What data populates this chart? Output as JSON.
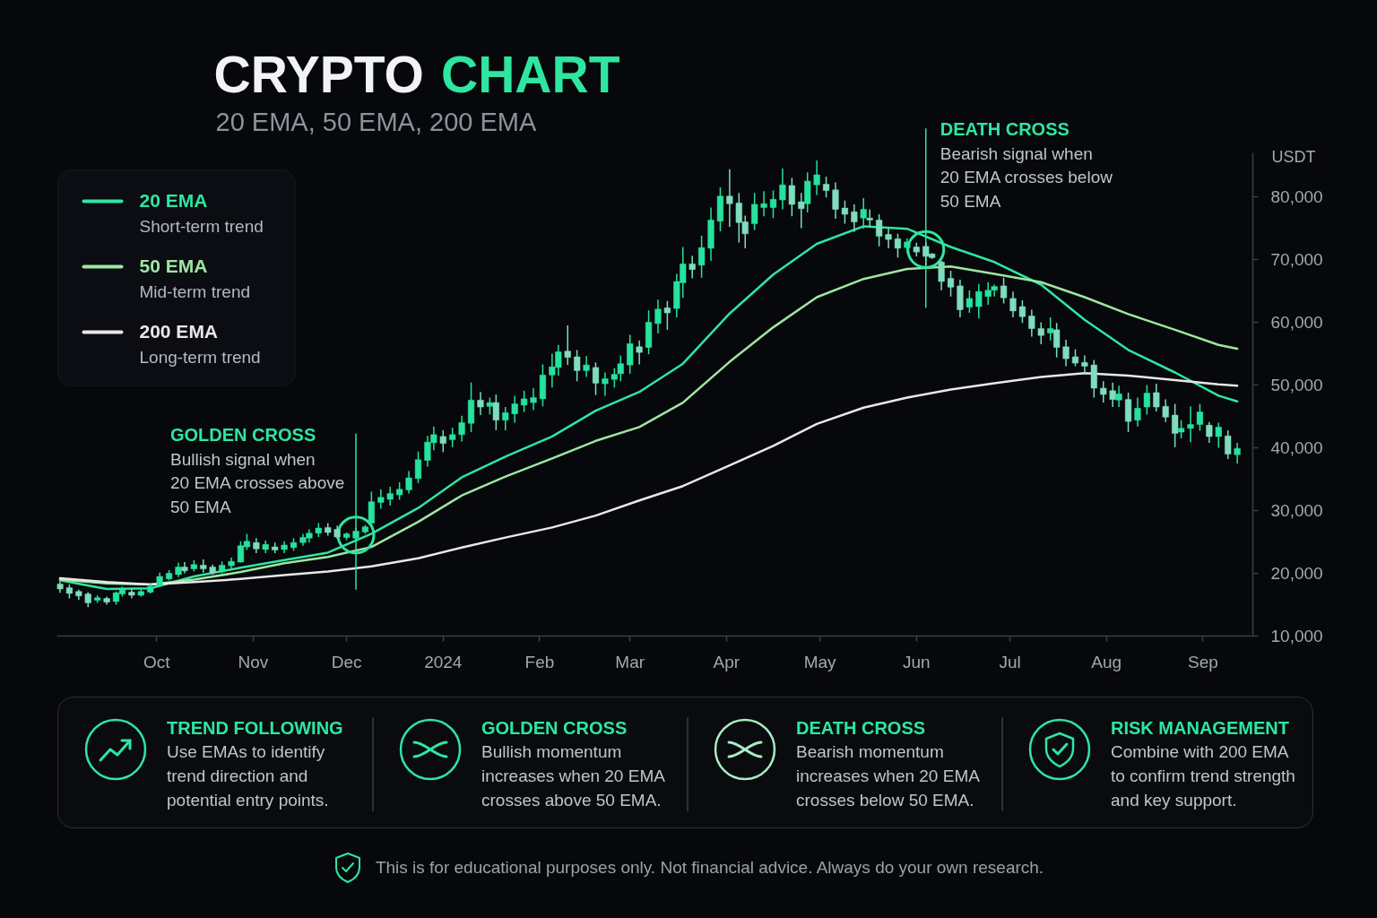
{
  "chart_data": {
    "type": "candlestick",
    "title": "CRYPTO CHART",
    "subtitle": "20 EMA, 50 EMA, 200 EMA",
    "ylabel": "USDT",
    "x": [
      "2023-08-31",
      "2023-09-03",
      "2023-09-06",
      "2023-09-09",
      "2023-09-12",
      "2023-09-15",
      "2023-09-18",
      "2023-09-20",
      "2023-09-23",
      "2023-09-26",
      "2023-09-29",
      "2023-10-02",
      "2023-10-05",
      "2023-10-08",
      "2023-10-10",
      "2023-10-13",
      "2023-10-16",
      "2023-10-19",
      "2023-10-22",
      "2023-10-25",
      "2023-10-28",
      "2023-10-30",
      "2023-11-02",
      "2023-11-05",
      "2023-11-08",
      "2023-11-11",
      "2023-11-14",
      "2023-11-17",
      "2023-11-19",
      "2023-11-22",
      "2023-11-25",
      "2023-11-28",
      "2023-12-01",
      "2023-12-04",
      "2023-12-07",
      "2023-12-09",
      "2023-12-12",
      "2023-12-15",
      "2023-12-18",
      "2023-12-21",
      "2023-12-24",
      "2023-12-27",
      "2023-12-29",
      "2024-01-01",
      "2024-01-04",
      "2024-01-07",
      "2024-01-10",
      "2024-01-13",
      "2024-01-16",
      "2024-01-18",
      "2024-01-21",
      "2024-01-24",
      "2024-01-27",
      "2024-01-30",
      "2024-02-02",
      "2024-02-05",
      "2024-02-07",
      "2024-02-10",
      "2024-02-13",
      "2024-02-16",
      "2024-02-19",
      "2024-02-22",
      "2024-02-25",
      "2024-02-27",
      "2024-03-01",
      "2024-03-04",
      "2024-03-07",
      "2024-03-10",
      "2024-03-13",
      "2024-03-16",
      "2024-03-18",
      "2024-03-21",
      "2024-03-24",
      "2024-03-27",
      "2024-03-30",
      "2024-04-02",
      "2024-04-05",
      "2024-04-07",
      "2024-04-10",
      "2024-04-13",
      "2024-04-16",
      "2024-04-19",
      "2024-04-22",
      "2024-04-25",
      "2024-04-27",
      "2024-04-30",
      "2024-05-03",
      "2024-05-06",
      "2024-05-09",
      "2024-05-12",
      "2024-05-15",
      "2024-05-17",
      "2024-05-20",
      "2024-05-23",
      "2024-05-26",
      "2024-05-29",
      "2024-06-01",
      "2024-06-04",
      "2024-06-06",
      "2024-06-09",
      "2024-06-12",
      "2024-06-15",
      "2024-06-18",
      "2024-06-21",
      "2024-06-24",
      "2024-06-26",
      "2024-06-29",
      "2024-07-02",
      "2024-07-05",
      "2024-07-08",
      "2024-07-11",
      "2024-07-14",
      "2024-07-16",
      "2024-07-19",
      "2024-07-22",
      "2024-07-25",
      "2024-07-28",
      "2024-07-31",
      "2024-08-03",
      "2024-08-05",
      "2024-08-08",
      "2024-08-11",
      "2024-08-14",
      "2024-08-17",
      "2024-08-20",
      "2024-08-23",
      "2024-08-25",
      "2024-08-28",
      "2024-08-31",
      "2024-09-03",
      "2024-09-06",
      "2024-09-09",
      "2024-09-12"
    ],
    "ohlc": [
      [
        18300,
        18700,
        16900,
        17500
      ],
      [
        17700,
        18200,
        16000,
        16800
      ],
      [
        17100,
        17400,
        15800,
        16400
      ],
      [
        16700,
        17000,
        14600,
        15300
      ],
      [
        15700,
        16500,
        15300,
        16100
      ],
      [
        16000,
        16300,
        15000,
        15400
      ],
      [
        15500,
        17100,
        15000,
        16900
      ],
      [
        16700,
        17900,
        16300,
        17500
      ],
      [
        17000,
        17500,
        16000,
        16500
      ],
      [
        16500,
        17500,
        16300,
        17100
      ],
      [
        17000,
        18400,
        16800,
        17900
      ],
      [
        18000,
        20100,
        17900,
        19500
      ],
      [
        19100,
        20500,
        18900,
        20000
      ],
      [
        19800,
        21700,
        19400,
        21000
      ],
      [
        21000,
        21800,
        20000,
        20400
      ],
      [
        20700,
        22100,
        20300,
        21400
      ],
      [
        21300,
        22200,
        20100,
        20700
      ],
      [
        21000,
        21400,
        19800,
        20100
      ],
      [
        20200,
        21900,
        20000,
        21300
      ],
      [
        21200,
        22500,
        20600,
        21900
      ],
      [
        21800,
        25100,
        21700,
        24400
      ],
      [
        24200,
        26300,
        23700,
        25100
      ],
      [
        24900,
        25600,
        23200,
        23900
      ],
      [
        23800,
        25200,
        23200,
        24600
      ],
      [
        24200,
        24900,
        23200,
        23700
      ],
      [
        23800,
        25100,
        23200,
        24500
      ],
      [
        24100,
        25600,
        23600,
        24900
      ],
      [
        24900,
        26300,
        24400,
        25700
      ],
      [
        25600,
        27000,
        24900,
        26400
      ],
      [
        26400,
        28000,
        25800,
        27200
      ],
      [
        27300,
        28000,
        26000,
        26500
      ],
      [
        27000,
        27600,
        25500,
        25800
      ],
      [
        25700,
        26500,
        25300,
        26300
      ],
      [
        25600,
        27200,
        25100,
        26700
      ],
      [
        26600,
        27700,
        26300,
        27400
      ],
      [
        28000,
        33000,
        27900,
        31400
      ],
      [
        31300,
        33400,
        30300,
        32100
      ],
      [
        31800,
        33800,
        30800,
        32700
      ],
      [
        32500,
        34500,
        31700,
        33400
      ],
      [
        33300,
        36300,
        32700,
        35200
      ],
      [
        35100,
        39400,
        34400,
        38100
      ],
      [
        38000,
        41900,
        37000,
        40900
      ],
      [
        40800,
        43400,
        39600,
        42100
      ],
      [
        41800,
        42800,
        39300,
        40700
      ],
      [
        41300,
        43200,
        40100,
        42100
      ],
      [
        42100,
        45100,
        41000,
        44000
      ],
      [
        43900,
        50400,
        42500,
        47600
      ],
      [
        47600,
        48900,
        45200,
        46500
      ],
      [
        46600,
        48000,
        45300,
        47200
      ],
      [
        47200,
        48500,
        42800,
        44400
      ],
      [
        44400,
        46500,
        42800,
        45600
      ],
      [
        45400,
        48300,
        44000,
        47000
      ],
      [
        46800,
        49100,
        45700,
        47800
      ],
      [
        47200,
        49500,
        46000,
        48000
      ],
      [
        47800,
        53300,
        46600,
        51600
      ],
      [
        51600,
        55000,
        49600,
        52900
      ],
      [
        52800,
        56400,
        51500,
        55300
      ],
      [
        55400,
        59500,
        53200,
        54400
      ],
      [
        54500,
        55600,
        50600,
        52300
      ],
      [
        52300,
        54600,
        51300,
        53200
      ],
      [
        52800,
        53600,
        48400,
        50300
      ],
      [
        50200,
        52000,
        48300,
        51000
      ],
      [
        50900,
        52700,
        49600,
        51700
      ],
      [
        51800,
        54700,
        50600,
        53400
      ],
      [
        53200,
        58000,
        51800,
        56600
      ],
      [
        56100,
        57100,
        53300,
        55200
      ],
      [
        56000,
        61900,
        54900,
        60000
      ],
      [
        59800,
        63600,
        58200,
        62100
      ],
      [
        62300,
        63400,
        58800,
        61500
      ],
      [
        62200,
        67700,
        60800,
        66500
      ],
      [
        66300,
        72000,
        63900,
        69300
      ],
      [
        69300,
        70600,
        67000,
        68400
      ],
      [
        69100,
        73800,
        67100,
        71900
      ],
      [
        71800,
        78300,
        69800,
        76300
      ],
      [
        76100,
        81500,
        74500,
        80100
      ],
      [
        80100,
        84400,
        75200,
        78900
      ],
      [
        79000,
        80600,
        72700,
        75900
      ],
      [
        76000,
        77000,
        71800,
        74100
      ],
      [
        75700,
        80600,
        74700,
        78800
      ],
      [
        78300,
        80900,
        76900,
        78900
      ],
      [
        78300,
        81000,
        76600,
        79600
      ],
      [
        79500,
        84500,
        78000,
        81900
      ],
      [
        81800,
        83000,
        76900,
        78800
      ],
      [
        79200,
        80600,
        75000,
        78100
      ],
      [
        78900,
        83900,
        77500,
        82500
      ],
      [
        81900,
        85800,
        80300,
        83500
      ],
      [
        82000,
        83200,
        79900,
        81000
      ],
      [
        81100,
        82300,
        76500,
        78000
      ],
      [
        78200,
        79400,
        75700,
        77200
      ],
      [
        77600,
        78800,
        74400,
        76000
      ],
      [
        76600,
        79800,
        74900,
        78000
      ],
      [
        76600,
        78000,
        75300,
        76300
      ],
      [
        76300,
        77200,
        72100,
        73700
      ],
      [
        74000,
        75100,
        71800,
        73200
      ],
      [
        73300,
        74100,
        70300,
        71800
      ],
      [
        71900,
        73400,
        71000,
        72800
      ],
      [
        72000,
        72700,
        70500,
        71200
      ],
      [
        72100,
        72800,
        69100,
        70500
      ],
      [
        70900,
        71000,
        70100,
        70300
      ],
      [
        69600,
        69800,
        65100,
        66500
      ],
      [
        67000,
        68200,
        64100,
        65600
      ],
      [
        65800,
        66800,
        60800,
        62000
      ],
      [
        62400,
        65100,
        61500,
        63800
      ],
      [
        62500,
        66100,
        60600,
        64900
      ],
      [
        64100,
        66400,
        62800,
        65100
      ],
      [
        65100,
        66000,
        64100,
        65700
      ],
      [
        65800,
        67100,
        63000,
        63900
      ],
      [
        63800,
        64900,
        60800,
        61800
      ],
      [
        62500,
        63500,
        59900,
        60900
      ],
      [
        61000,
        62000,
        57700,
        59000
      ],
      [
        59000,
        60000,
        56500,
        57900
      ],
      [
        58300,
        60800,
        57100,
        59000
      ],
      [
        58800,
        59900,
        54400,
        56000
      ],
      [
        56100,
        57200,
        53000,
        54200
      ],
      [
        54500,
        55700,
        53000,
        53500
      ],
      [
        53600,
        54700,
        51800,
        53000
      ],
      [
        53200,
        54000,
        48000,
        49500
      ],
      [
        49500,
        50600,
        47200,
        48500
      ],
      [
        49100,
        50400,
        46500,
        47700
      ],
      [
        47600,
        49900,
        46500,
        48600
      ],
      [
        47700,
        48800,
        42500,
        44200
      ],
      [
        44400,
        48000,
        43400,
        46300
      ],
      [
        46500,
        50000,
        45300,
        48700
      ],
      [
        48800,
        50200,
        45800,
        46500
      ],
      [
        46600,
        47700,
        44100,
        44900
      ],
      [
        45200,
        47000,
        40100,
        42300
      ],
      [
        42500,
        44400,
        41500,
        43100
      ],
      [
        43100,
        46600,
        40900,
        43700
      ],
      [
        43700,
        47000,
        42700,
        45700
      ],
      [
        43600,
        44100,
        40800,
        41800
      ],
      [
        41800,
        44000,
        40000,
        43300
      ],
      [
        41900,
        42800,
        38200,
        39000
      ],
      [
        38900,
        40800,
        37500,
        39900
      ]
    ],
    "colors": [
      "#7fdcbc",
      "#7fdcbc",
      "#7fdcbc",
      "#7fdcbc",
      "#26e29c",
      "#7fdcbc",
      "#26e29c",
      "#26e29c",
      "#7fdcbc",
      "#26e29c",
      "#26e29c",
      "#26e29c",
      "#26e29c",
      "#26e29c",
      "#7fdcbc",
      "#26e29c",
      "#7fdcbc",
      "#7fdcbc",
      "#26e29c",
      "#26e29c",
      "#26e29c",
      "#26e29c",
      "#7fdcbc",
      "#26e29c",
      "#7fdcbc",
      "#26e29c",
      "#26e29c",
      "#26e29c",
      "#26e29c",
      "#26e29c",
      "#7fdcbc",
      "#7fdcbc",
      "#26e29c",
      "#26e29c",
      "#26e29c",
      "#26e29c",
      "#26e29c",
      "#26e29c",
      "#26e29c",
      "#26e29c",
      "#26e29c",
      "#26e29c",
      "#26e29c",
      "#7fdcbc",
      "#26e29c",
      "#26e29c",
      "#26e29c",
      "#7fdcbc",
      "#26e29c",
      "#7fdcbc",
      "#26e29c",
      "#26e29c",
      "#26e29c",
      "#26e29c",
      "#26e29c",
      "#26e29c",
      "#26e29c",
      "#7fdcbc",
      "#7fdcbc",
      "#26e29c",
      "#7fdcbc",
      "#26e29c",
      "#26e29c",
      "#26e29c",
      "#26e29c",
      "#7fdcbc",
      "#26e29c",
      "#26e29c",
      "#7fdcbc",
      "#26e29c",
      "#26e29c",
      "#7fdcbc",
      "#26e29c",
      "#26e29c",
      "#26e29c",
      "#7fdcbc",
      "#7fdcbc",
      "#7fdcbc",
      "#26e29c",
      "#26e29c",
      "#26e29c",
      "#26e29c",
      "#7fdcbc",
      "#7fdcbc",
      "#26e29c",
      "#26e29c",
      "#7fdcbc",
      "#7fdcbc",
      "#7fdcbc",
      "#7fdcbc",
      "#26e29c",
      "#7fdcbc",
      "#7fdcbc",
      "#7fdcbc",
      "#7fdcbc",
      "#26e29c",
      "#7fdcbc",
      "#7fdcbc",
      "#7fdcbc",
      "#7fdcbc",
      "#7fdcbc",
      "#7fdcbc",
      "#26e29c",
      "#26e29c",
      "#26e29c",
      "#26e29c",
      "#7fdcbc",
      "#7fdcbc",
      "#7fdcbc",
      "#7fdcbc",
      "#7fdcbc",
      "#26e29c",
      "#7fdcbc",
      "#7fdcbc",
      "#7fdcbc",
      "#7fdcbc",
      "#7fdcbc",
      "#7fdcbc",
      "#7fdcbc",
      "#26e29c",
      "#7fdcbc",
      "#26e29c",
      "#26e29c",
      "#7fdcbc",
      "#7fdcbc",
      "#7fdcbc",
      "#26e29c",
      "#26e29c",
      "#26e29c",
      "#7fdcbc",
      "#26e29c",
      "#7fdcbc",
      "#26e29c"
    ],
    "series": [
      {
        "name": "20 EMA",
        "type": "line",
        "color": "#2ee6a0",
        "x": [
          "2023-08-31",
          "2023-09-15",
          "2023-09-29",
          "2023-10-13",
          "2023-10-28",
          "2023-11-11",
          "2023-11-25",
          "2023-12-09",
          "2023-12-24",
          "2024-01-07",
          "2024-01-21",
          "2024-02-05",
          "2024-02-19",
          "2024-03-04",
          "2024-03-18",
          "2024-04-02",
          "2024-04-16",
          "2024-04-30",
          "2024-05-15",
          "2024-05-29",
          "2024-06-12",
          "2024-06-26",
          "2024-07-11",
          "2024-07-25",
          "2024-08-08",
          "2024-08-23",
          "2024-09-06",
          "2024-09-12"
        ],
        "values": [
          18900,
          17500,
          17600,
          19500,
          20900,
          22100,
          23300,
          26300,
          30400,
          35300,
          38600,
          41800,
          45900,
          48900,
          53400,
          61400,
          67600,
          72500,
          75300,
          74900,
          72000,
          69600,
          66000,
          60400,
          55600,
          52000,
          48300,
          47400
        ]
      },
      {
        "name": "50 EMA",
        "type": "line",
        "color": "#9ee6a2",
        "x": [
          "2023-08-31",
          "2023-09-15",
          "2023-09-29",
          "2023-10-13",
          "2023-10-28",
          "2023-11-11",
          "2023-11-25",
          "2023-12-09",
          "2023-12-24",
          "2024-01-07",
          "2024-01-21",
          "2024-02-05",
          "2024-02-19",
          "2024-03-04",
          "2024-03-18",
          "2024-04-02",
          "2024-04-16",
          "2024-04-30",
          "2024-05-15",
          "2024-05-29",
          "2024-06-12",
          "2024-06-26",
          "2024-07-11",
          "2024-07-25",
          "2024-08-08",
          "2024-08-23",
          "2024-09-06",
          "2024-09-12"
        ],
        "values": [
          19000,
          18400,
          18200,
          19000,
          20200,
          21600,
          22600,
          24200,
          28200,
          32400,
          35400,
          38300,
          41100,
          43300,
          47200,
          53700,
          59200,
          64000,
          66900,
          68500,
          68900,
          67700,
          66400,
          64000,
          61300,
          58800,
          56400,
          55800
        ]
      },
      {
        "name": "200 EMA",
        "type": "line",
        "color": "#e8e8e8",
        "x": [
          "2023-08-31",
          "2023-09-15",
          "2023-09-29",
          "2023-10-13",
          "2023-10-28",
          "2023-11-11",
          "2023-11-25",
          "2023-12-09",
          "2023-12-24",
          "2024-01-07",
          "2024-01-21",
          "2024-02-05",
          "2024-02-19",
          "2024-03-04",
          "2024-03-18",
          "2024-04-02",
          "2024-04-16",
          "2024-04-30",
          "2024-05-15",
          "2024-05-29",
          "2024-06-12",
          "2024-06-26",
          "2024-07-11",
          "2024-07-25",
          "2024-08-08",
          "2024-08-23",
          "2024-09-06",
          "2024-09-12"
        ],
        "values": [
          19200,
          18600,
          18200,
          18600,
          19100,
          19700,
          20300,
          21100,
          22400,
          24100,
          25700,
          27300,
          29200,
          31600,
          33900,
          37200,
          40300,
          43800,
          46400,
          48000,
          49300,
          50300,
          51300,
          51900,
          51500,
          50800,
          50100,
          49900
        ]
      },
      {
        "type": "scatter",
        "color": "#2ee6a0",
        "marker": "circle",
        "x": [
          "2023-12-04",
          "2024-06-04"
        ],
        "values": [
          26100,
          71600
        ]
      }
    ],
    "xlim": [
      "2023-08-30",
      "2024-09-17"
    ],
    "xticks": [
      {
        "value": "2023-10-01",
        "label": "Oct"
      },
      {
        "value": "2023-11-01",
        "label": "Nov"
      },
      {
        "value": "2023-12-01",
        "label": "Dec"
      },
      {
        "value": "2024-01-01",
        "label": "2024"
      },
      {
        "value": "2024-02-01",
        "label": "Feb"
      },
      {
        "value": "2024-03-01",
        "label": "Mar"
      },
      {
        "value": "2024-04-01",
        "label": "Apr"
      },
      {
        "value": "2024-05-01",
        "label": "May"
      },
      {
        "value": "2024-06-01",
        "label": "Jun"
      },
      {
        "value": "2024-07-01",
        "label": "Jul"
      },
      {
        "value": "2024-08-01",
        "label": "Aug"
      },
      {
        "value": "2024-09-01",
        "label": "Sep"
      }
    ],
    "ylim": [
      10000,
      87000
    ],
    "yticks": [
      {
        "value": 10000,
        "label": "10,000"
      },
      {
        "value": 20000,
        "label": "20,000"
      },
      {
        "value": 30000,
        "label": "30,000"
      },
      {
        "value": 40000,
        "label": "40,000"
      },
      {
        "value": 50000,
        "label": "50,000"
      },
      {
        "value": 60000,
        "label": "60,000"
      },
      {
        "value": 70000,
        "label": "70,000"
      },
      {
        "value": 80000,
        "label": "80,000"
      }
    ],
    "grid": false,
    "legend": "top left",
    "ref_lines": [
      {
        "axis": "x",
        "value": "2023-12-04",
        "label": "GOLDEN CROSS",
        "color": "#2ee6a0"
      },
      {
        "axis": "x",
        "value": "2024-06-04",
        "label": "DEATH CROSS",
        "color": "#2ee6a0"
      }
    ],
    "annotations": [
      "Short-term trend",
      "Mid-term trend",
      "Long-term trend",
      "Bullish signal when 20 EMA crosses above 50 EMA",
      "Bearish signal when 20 EMA crosses below 50 EMA",
      "TREND FOLLOWING",
      "Use EMAs to identify trend direction and potential entry points.",
      "GOLDEN CROSS",
      "Bullish momentum increases when 20 EMA crosses above 50 EMA.",
      "DEATH CROSS",
      "Bearish momentum increases when 20 EMA crosses below 50 EMA.",
      "RISK MANAGEMENT",
      "Combine with 200 EMA to confirm trend strength and key support.",
      "This is for educational purposes only. Not financial advice. Always do your own research."
    ]
  }
}
